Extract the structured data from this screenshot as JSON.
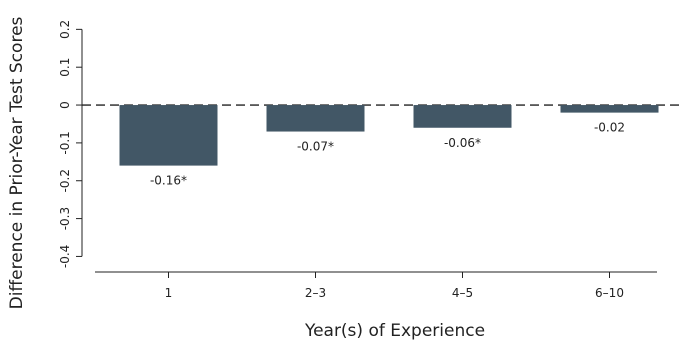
{
  "chart_data": {
    "type": "bar",
    "title": "",
    "xlabel": "Year(s) of Experience",
    "ylabel": "Difference in Prior-Year Test Scores",
    "categories": [
      "1",
      "2–3",
      "4–5",
      "6–10"
    ],
    "values": [
      -0.16,
      -0.07,
      -0.06,
      -0.02
    ],
    "data_labels": [
      "-0.16*",
      "-0.07*",
      "-0.06*",
      "-0.02"
    ],
    "ylim": [
      -0.42,
      0.23
    ],
    "yticks": [
      -0.4,
      -0.3,
      -0.2,
      -0.1,
      0,
      0.1,
      0.2
    ],
    "ytick_labels": [
      "-0.4",
      "-0.3",
      "-0.2",
      "-0.1",
      "0",
      "0.1",
      "0.2"
    ],
    "reference_line": {
      "y": 0,
      "style": "dashed"
    },
    "grid": false,
    "legend": "none",
    "colors": {
      "bar": "#425766",
      "axis": "#222222",
      "text": "#222222"
    }
  }
}
